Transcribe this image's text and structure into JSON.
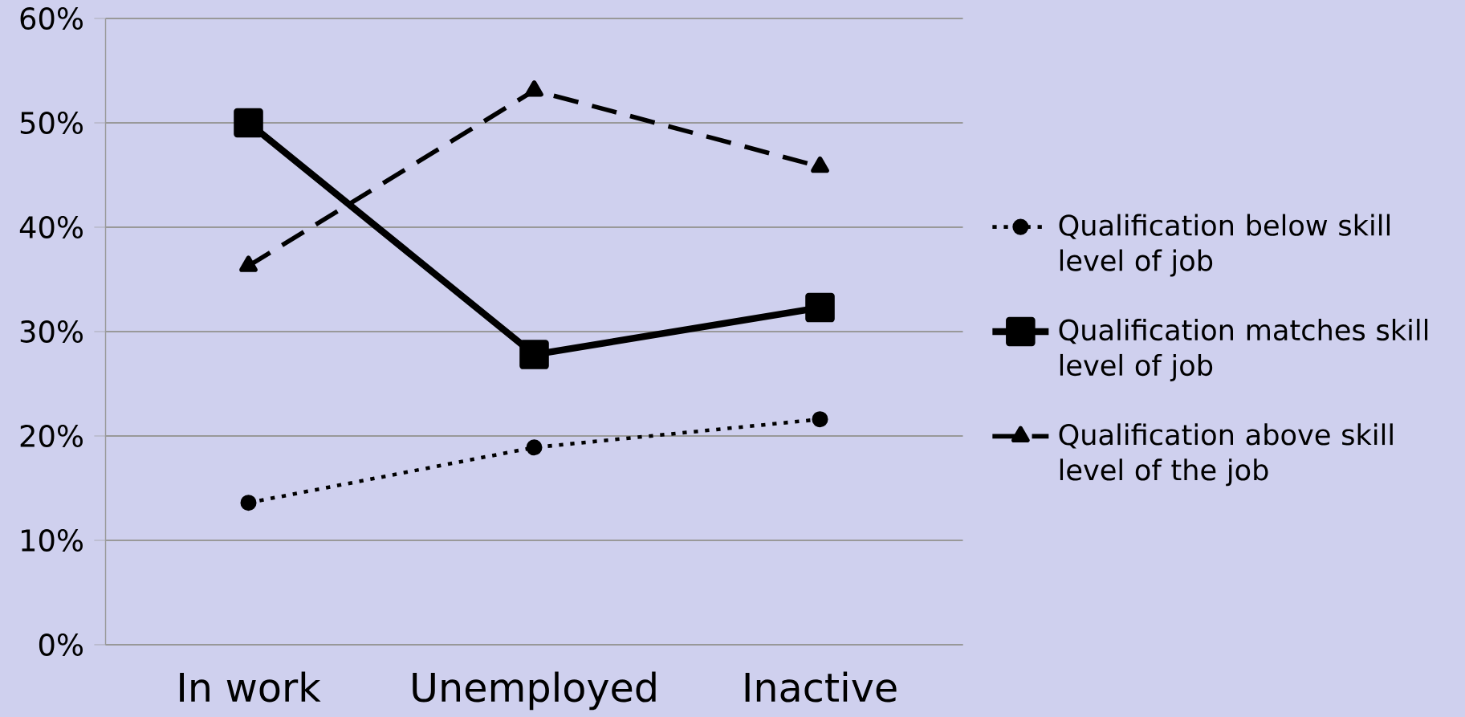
{
  "chart_data": {
    "type": "line",
    "categories": [
      "In work",
      "Unemployed",
      "Inactive"
    ],
    "series": [
      {
        "name": "Qualification below skill level of job",
        "color": "#000000",
        "values": [
          13.6,
          18.9,
          21.6
        ],
        "marker": "circle",
        "line_style": "dotted"
      },
      {
        "name": "Qualification matches skill level of job",
        "color": "#000000",
        "values": [
          50.0,
          27.8,
          32.3
        ],
        "marker": "square",
        "line_style": "solid"
      },
      {
        "name": "Qualification above skill level of the job",
        "color": "#000000",
        "values": [
          36.3,
          53.1,
          45.8
        ],
        "marker": "triangle",
        "line_style": "dashed"
      }
    ],
    "ylim": [
      0,
      60
    ],
    "yticks": [
      {
        "value": 0,
        "label": "0%"
      },
      {
        "value": 10,
        "label": "10%"
      },
      {
        "value": 20,
        "label": "20%"
      },
      {
        "value": 30,
        "label": "30%"
      },
      {
        "value": 40,
        "label": "40%"
      },
      {
        "value": 50,
        "label": "50%"
      },
      {
        "value": 60,
        "label": "60%"
      }
    ],
    "grid": "y",
    "legend": "right"
  }
}
